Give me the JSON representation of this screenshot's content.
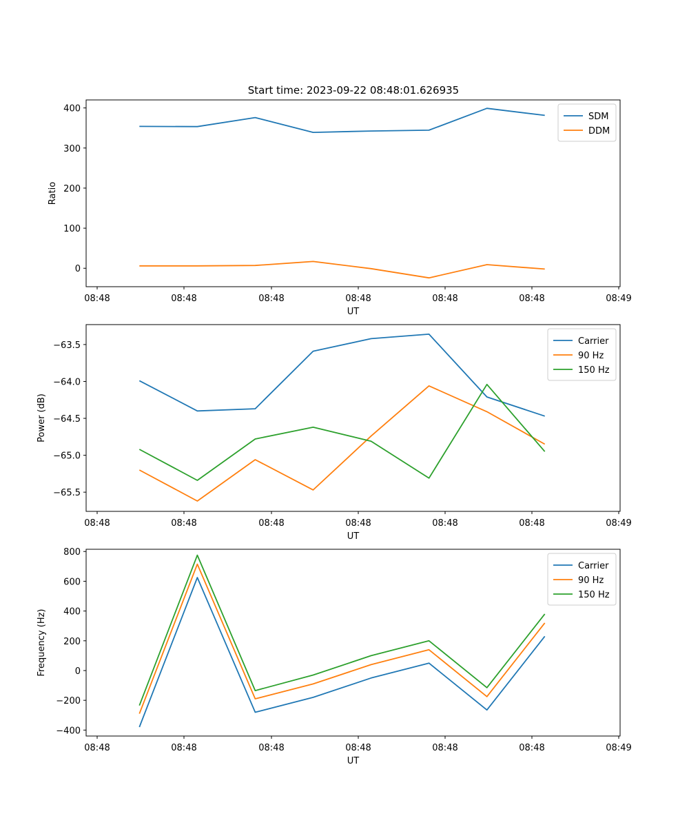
{
  "figure": {
    "title": "Start time: 2023-09-22 08:48:01.626935"
  },
  "chart_data": [
    {
      "type": "line",
      "title": "Start time: 2023-09-22 08:48:01.626935",
      "xlabel": "UT",
      "ylabel": "Ratio",
      "x_tick_labels": [
        "08:48",
        "08:48",
        "08:48",
        "08:48",
        "08:48",
        "08:48",
        "08:49"
      ],
      "x": [
        1,
        2,
        3,
        4,
        5,
        6,
        7,
        8
      ],
      "xlim": [
        0.08,
        9.3
      ],
      "ylim": [
        -46,
        420
      ],
      "yticks": [
        0,
        100,
        200,
        300,
        400
      ],
      "ytick_labels": [
        "0",
        "100",
        "200",
        "300",
        "400"
      ],
      "legend_position": "top-right",
      "series": [
        {
          "name": "SDM",
          "color": "#1f77b4",
          "values": [
            354,
            353.5,
            376,
            339,
            342.5,
            344.5,
            399,
            381.5
          ]
        },
        {
          "name": "DDM",
          "color": "#ff7f0e",
          "values": [
            6,
            6,
            7,
            17,
            -1,
            -24,
            9,
            -2
          ]
        }
      ]
    },
    {
      "type": "line",
      "title": "",
      "xlabel": "UT",
      "ylabel": "Power (dB)",
      "x_tick_labels": [
        "08:48",
        "08:48",
        "08:48",
        "08:48",
        "08:48",
        "08:48",
        "08:49"
      ],
      "x": [
        1,
        2,
        3,
        4,
        5,
        6,
        7,
        8
      ],
      "xlim": [
        0.08,
        9.3
      ],
      "ylim": [
        -65.76,
        -63.23
      ],
      "yticks": [
        -65.5,
        -65.0,
        -64.5,
        -64.0,
        -63.5
      ],
      "ytick_labels": [
        "−65.5",
        "−65.0",
        "−64.5",
        "−64.0",
        "−63.5"
      ],
      "legend_position": "top-right",
      "series": [
        {
          "name": "Carrier",
          "color": "#1f77b4",
          "values": [
            -63.99,
            -64.4,
            -64.37,
            -63.59,
            -63.42,
            -63.36,
            -64.21,
            -64.47
          ]
        },
        {
          "name": "90 Hz",
          "color": "#ff7f0e",
          "values": [
            -65.2,
            -65.62,
            -65.06,
            -65.47,
            -64.74,
            -64.06,
            -64.41,
            -64.85
          ]
        },
        {
          "name": "150 Hz",
          "color": "#2ca02c",
          "values": [
            -64.92,
            -65.34,
            -64.78,
            -64.62,
            -64.81,
            -65.31,
            -64.04,
            -64.95
          ]
        }
      ]
    },
    {
      "type": "line",
      "title": "",
      "xlabel": "UT",
      "ylabel": "Frequency (Hz)",
      "x_tick_labels": [
        "08:48",
        "08:48",
        "08:48",
        "08:48",
        "08:48",
        "08:48",
        "08:49"
      ],
      "x": [
        1,
        2,
        3,
        4,
        5,
        6,
        7,
        8
      ],
      "xlim": [
        0.08,
        9.3
      ],
      "ylim": [
        -440,
        815
      ],
      "yticks": [
        -400,
        -200,
        0,
        200,
        400,
        600,
        800
      ],
      "ytick_labels": [
        "−400",
        "−200",
        "0",
        "200",
        "400",
        "600",
        "800"
      ],
      "legend_position": "top-right",
      "series": [
        {
          "name": "Carrier",
          "color": "#1f77b4",
          "values": [
            -380,
            625,
            -280,
            -180,
            -50,
            50,
            -265,
            230
          ]
        },
        {
          "name": "90 Hz",
          "color": "#ff7f0e",
          "values": [
            -290,
            715,
            -190,
            -90,
            40,
            140,
            -175,
            320
          ]
        },
        {
          "name": "150 Hz",
          "color": "#2ca02c",
          "values": [
            -235,
            775,
            -135,
            -30,
            100,
            200,
            -115,
            380
          ]
        }
      ]
    }
  ]
}
